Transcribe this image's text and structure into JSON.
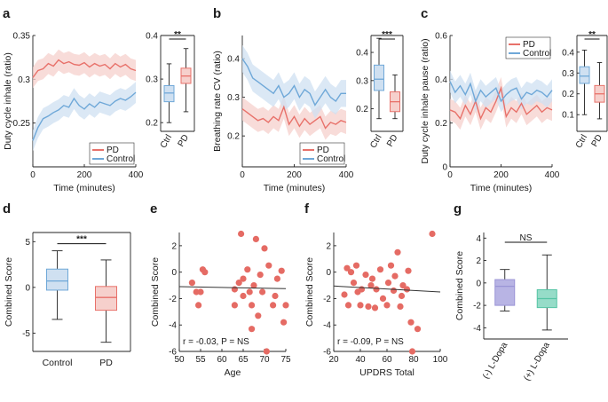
{
  "colors": {
    "pd": "#e8716a",
    "control": "#6fa8d8",
    "pd_band": "#f6d0cc",
    "control_band": "#cfe0f1",
    "scatter": "#e56b64",
    "nodopa": "#b8b4e4",
    "dopa": "#96dcc8"
  },
  "chart_data": [
    {
      "panel": "a",
      "type": "line",
      "xlabel": "Time (minutes)",
      "ylabel": "Duty cycle inhale (ratio)",
      "xlim": [
        0,
        400
      ],
      "ylim": [
        0.2,
        0.35
      ],
      "xticks": [
        0,
        200,
        400
      ],
      "yticks": [
        0.25,
        0.3,
        0.35
      ],
      "legend": [
        "PD",
        "Control"
      ],
      "legend_position": "bottom-right",
      "series": [
        {
          "name": "PD",
          "x": [
            0,
            20,
            40,
            60,
            80,
            100,
            120,
            140,
            160,
            180,
            200,
            220,
            240,
            260,
            280,
            300,
            320,
            340,
            360,
            380,
            400
          ],
          "y": [
            0.302,
            0.31,
            0.312,
            0.318,
            0.315,
            0.322,
            0.318,
            0.32,
            0.317,
            0.316,
            0.319,
            0.314,
            0.318,
            0.315,
            0.317,
            0.312,
            0.318,
            0.314,
            0.317,
            0.312,
            0.31
          ],
          "band": 0.012
        },
        {
          "name": "Control",
          "x": [
            0,
            20,
            40,
            60,
            80,
            100,
            120,
            140,
            160,
            180,
            200,
            220,
            240,
            260,
            280,
            300,
            320,
            340,
            360,
            380,
            400
          ],
          "y": [
            0.23,
            0.245,
            0.255,
            0.258,
            0.262,
            0.265,
            0.27,
            0.268,
            0.278,
            0.27,
            0.266,
            0.272,
            0.268,
            0.274,
            0.272,
            0.27,
            0.275,
            0.278,
            0.276,
            0.28,
            0.285
          ],
          "band": 0.012
        }
      ]
    },
    {
      "panel": "a-box",
      "type": "box",
      "categories": [
        "Ctrl",
        "PD"
      ],
      "ylim": [
        0.18,
        0.4
      ],
      "yticks": [
        0.2,
        0.3,
        0.4
      ],
      "significance": "**",
      "boxes": [
        {
          "name": "Ctrl",
          "min": 0.2,
          "q1": 0.248,
          "median": 0.268,
          "q3": 0.285,
          "max": 0.335
        },
        {
          "name": "PD",
          "min": 0.225,
          "q1": 0.29,
          "median": 0.307,
          "q3": 0.325,
          "max": 0.37
        }
      ]
    },
    {
      "panel": "b",
      "type": "line",
      "xlabel": "Time (minutes)",
      "ylabel": "Breathing rate CV (ratio)",
      "xlim": [
        0,
        400
      ],
      "ylim": [
        0.12,
        0.46
      ],
      "xticks": [
        0,
        200,
        400
      ],
      "yticks": [
        0.2,
        0.3,
        0.4
      ],
      "legend": [
        "PD",
        "Control"
      ],
      "legend_position": "bottom-right",
      "series": [
        {
          "name": "PD",
          "x": [
            0,
            20,
            40,
            60,
            80,
            100,
            120,
            140,
            160,
            180,
            200,
            220,
            240,
            260,
            280,
            300,
            320,
            340,
            360,
            380,
            400
          ],
          "y": [
            0.27,
            0.26,
            0.25,
            0.24,
            0.245,
            0.235,
            0.25,
            0.24,
            0.275,
            0.23,
            0.25,
            0.225,
            0.245,
            0.23,
            0.24,
            0.25,
            0.22,
            0.235,
            0.23,
            0.24,
            0.235
          ],
          "band": 0.03
        },
        {
          "name": "Control",
          "x": [
            0,
            20,
            40,
            60,
            80,
            100,
            120,
            140,
            160,
            180,
            200,
            220,
            240,
            260,
            280,
            300,
            320,
            340,
            360,
            380,
            400
          ],
          "y": [
            0.4,
            0.38,
            0.35,
            0.34,
            0.33,
            0.32,
            0.31,
            0.33,
            0.3,
            0.31,
            0.33,
            0.3,
            0.32,
            0.31,
            0.28,
            0.3,
            0.32,
            0.3,
            0.29,
            0.31,
            0.31
          ],
          "band": 0.035
        }
      ]
    },
    {
      "panel": "b-box",
      "type": "box",
      "categories": [
        "Ctrl",
        "PD"
      ],
      "ylim": [
        0.12,
        0.46
      ],
      "yticks": [
        0.2,
        0.3,
        0.4
      ],
      "significance": "***",
      "boxes": [
        {
          "name": "Ctrl",
          "min": 0.165,
          "q1": 0.265,
          "median": 0.305,
          "q3": 0.355,
          "max": 0.45
        },
        {
          "name": "PD",
          "min": 0.165,
          "q1": 0.19,
          "median": 0.225,
          "q3": 0.26,
          "max": 0.32
        }
      ]
    },
    {
      "panel": "c",
      "type": "line",
      "xlabel": "Time (minutes)",
      "ylabel": "Duty cycle inhale pause (ratio)",
      "xlim": [
        0,
        400
      ],
      "ylim": [
        0,
        0.6
      ],
      "xticks": [
        0,
        200,
        400
      ],
      "yticks": [
        0,
        0.2,
        0.4,
        0.6
      ],
      "legend": [
        "PD",
        "Control"
      ],
      "legend_position": "top-right",
      "series": [
        {
          "name": "PD",
          "x": [
            0,
            20,
            40,
            60,
            80,
            100,
            120,
            140,
            160,
            180,
            200,
            220,
            240,
            260,
            280,
            300,
            320,
            340,
            360,
            380,
            400
          ],
          "y": [
            0.26,
            0.25,
            0.22,
            0.28,
            0.24,
            0.3,
            0.22,
            0.27,
            0.25,
            0.3,
            0.36,
            0.23,
            0.27,
            0.25,
            0.29,
            0.24,
            0.26,
            0.28,
            0.25,
            0.27,
            0.26
          ],
          "band": 0.05
        },
        {
          "name": "Control",
          "x": [
            0,
            20,
            40,
            60,
            80,
            100,
            120,
            140,
            160,
            180,
            200,
            220,
            240,
            260,
            280,
            300,
            320,
            340,
            360,
            380,
            400
          ],
          "y": [
            0.39,
            0.34,
            0.37,
            0.33,
            0.38,
            0.3,
            0.35,
            0.32,
            0.34,
            0.36,
            0.3,
            0.33,
            0.35,
            0.36,
            0.31,
            0.34,
            0.33,
            0.35,
            0.34,
            0.32,
            0.35
          ],
          "band": 0.05
        }
      ]
    },
    {
      "panel": "c-box",
      "type": "box",
      "categories": [
        "Ctrl",
        "PD"
      ],
      "ylim": [
        0.02,
        0.48
      ],
      "yticks": [
        0.1,
        0.2,
        0.3,
        0.4
      ],
      "significance": "**",
      "boxes": [
        {
          "name": "Ctrl",
          "min": 0.1,
          "q1": 0.25,
          "median": 0.285,
          "q3": 0.33,
          "max": 0.41
        },
        {
          "name": "PD",
          "min": 0.08,
          "q1": 0.16,
          "median": 0.2,
          "q3": 0.24,
          "max": 0.35
        }
      ]
    },
    {
      "panel": "d",
      "type": "box",
      "categories": [
        "Control",
        "PD"
      ],
      "ylabel": "Combined Score",
      "ylim": [
        -7,
        6
      ],
      "yticks": [
        -5,
        0,
        5
      ],
      "significance": "***",
      "boxes": [
        {
          "name": "Control",
          "min": -3.5,
          "q1": -0.3,
          "median": 0.7,
          "q3": 2.0,
          "max": 4.0
        },
        {
          "name": "PD",
          "min": -6.0,
          "q1": -2.5,
          "median": -1.1,
          "q3": 0.1,
          "max": 3.0
        }
      ]
    },
    {
      "panel": "e",
      "type": "scatter",
      "xlabel": "Age",
      "ylabel": "Combined Score",
      "xlim": [
        50,
        75
      ],
      "ylim": [
        -6,
        3
      ],
      "xticks": [
        50,
        55,
        60,
        65,
        70,
        75
      ],
      "yticks": [
        -6,
        -4,
        -2,
        0,
        2
      ],
      "annotation": "r = -0.03, P = NS",
      "fit": {
        "x": [
          50,
          75
        ],
        "y": [
          -1.1,
          -1.25
        ]
      },
      "points": [
        [
          53,
          -0.8
        ],
        [
          54,
          -1.5
        ],
        [
          54.5,
          -2.5
        ],
        [
          55,
          -1.5
        ],
        [
          55.5,
          0.2
        ],
        [
          56,
          0
        ],
        [
          63,
          -1.3
        ],
        [
          63,
          -2.5
        ],
        [
          64,
          -0.8
        ],
        [
          64.5,
          2.9
        ],
        [
          65,
          -0.5
        ],
        [
          65,
          -1.8
        ],
        [
          66,
          0.2
        ],
        [
          66.5,
          -1.5
        ],
        [
          67,
          -2.5
        ],
        [
          67,
          -4.3
        ],
        [
          67.5,
          -1
        ],
        [
          68,
          2.5
        ],
        [
          68.5,
          -3.3
        ],
        [
          69,
          -0.2
        ],
        [
          69.5,
          -1.5
        ],
        [
          70,
          1.8
        ],
        [
          70.5,
          -6
        ],
        [
          71,
          0.5
        ],
        [
          72,
          -2.5
        ],
        [
          72.5,
          -1.8
        ],
        [
          73,
          -0.5
        ],
        [
          74,
          0.1
        ],
        [
          74.5,
          -3.8
        ],
        [
          75,
          -2.5
        ]
      ]
    },
    {
      "panel": "f",
      "type": "scatter",
      "xlabel": "UPDRS Total",
      "ylabel": "Combined Score",
      "xlim": [
        20,
        100
      ],
      "ylim": [
        -6,
        3
      ],
      "xticks": [
        20,
        40,
        60,
        80,
        100
      ],
      "yticks": [
        -6,
        -4,
        -2,
        0,
        2
      ],
      "annotation": "r = -0.09, P = NS",
      "fit": {
        "x": [
          20,
          100
        ],
        "y": [
          -1.05,
          -1.5
        ]
      },
      "points": [
        [
          28,
          -1.7
        ],
        [
          30,
          0.3
        ],
        [
          31,
          -2.5
        ],
        [
          33,
          0
        ],
        [
          35,
          -0.8
        ],
        [
          37,
          0.5
        ],
        [
          38,
          -1.5
        ],
        [
          40,
          -2.5
        ],
        [
          41,
          -1.3
        ],
        [
          44,
          -0.2
        ],
        [
          46,
          -2.6
        ],
        [
          48,
          -1
        ],
        [
          49,
          -0.5
        ],
        [
          51,
          -2.7
        ],
        [
          52,
          -1.3
        ],
        [
          55,
          0.2
        ],
        [
          57,
          -2
        ],
        [
          60,
          -2.5
        ],
        [
          61,
          -0.8
        ],
        [
          63,
          0.5
        ],
        [
          65,
          -1.4
        ],
        [
          66,
          -0.3
        ],
        [
          68,
          1.5
        ],
        [
          70,
          -2.6
        ],
        [
          71,
          -1.8
        ],
        [
          72,
          -1
        ],
        [
          75,
          -1.3
        ],
        [
          76,
          0.1
        ],
        [
          78,
          -3.8
        ],
        [
          79,
          -6
        ],
        [
          83,
          -4.3
        ],
        [
          94,
          2.9
        ]
      ]
    },
    {
      "panel": "g",
      "type": "box",
      "categories": [
        "(-) L-Dopa",
        "(+) L-Dopa"
      ],
      "ylabel": "Combined Score",
      "ylim": [
        -5,
        4.5
      ],
      "yticks": [
        -4,
        -2,
        0,
        2,
        4
      ],
      "significance": "NS",
      "boxes": [
        {
          "name": "(-) L-Dopa",
          "min": -2.5,
          "q1": -2.0,
          "median": -0.3,
          "q3": 0.3,
          "max": 1.2
        },
        {
          "name": "(+) L-Dopa",
          "min": -4.2,
          "q1": -2.2,
          "median": -1.4,
          "q3": -0.6,
          "max": 2.5
        }
      ]
    }
  ],
  "panel_labels": [
    "a",
    "b",
    "c",
    "d",
    "e",
    "f",
    "g"
  ]
}
